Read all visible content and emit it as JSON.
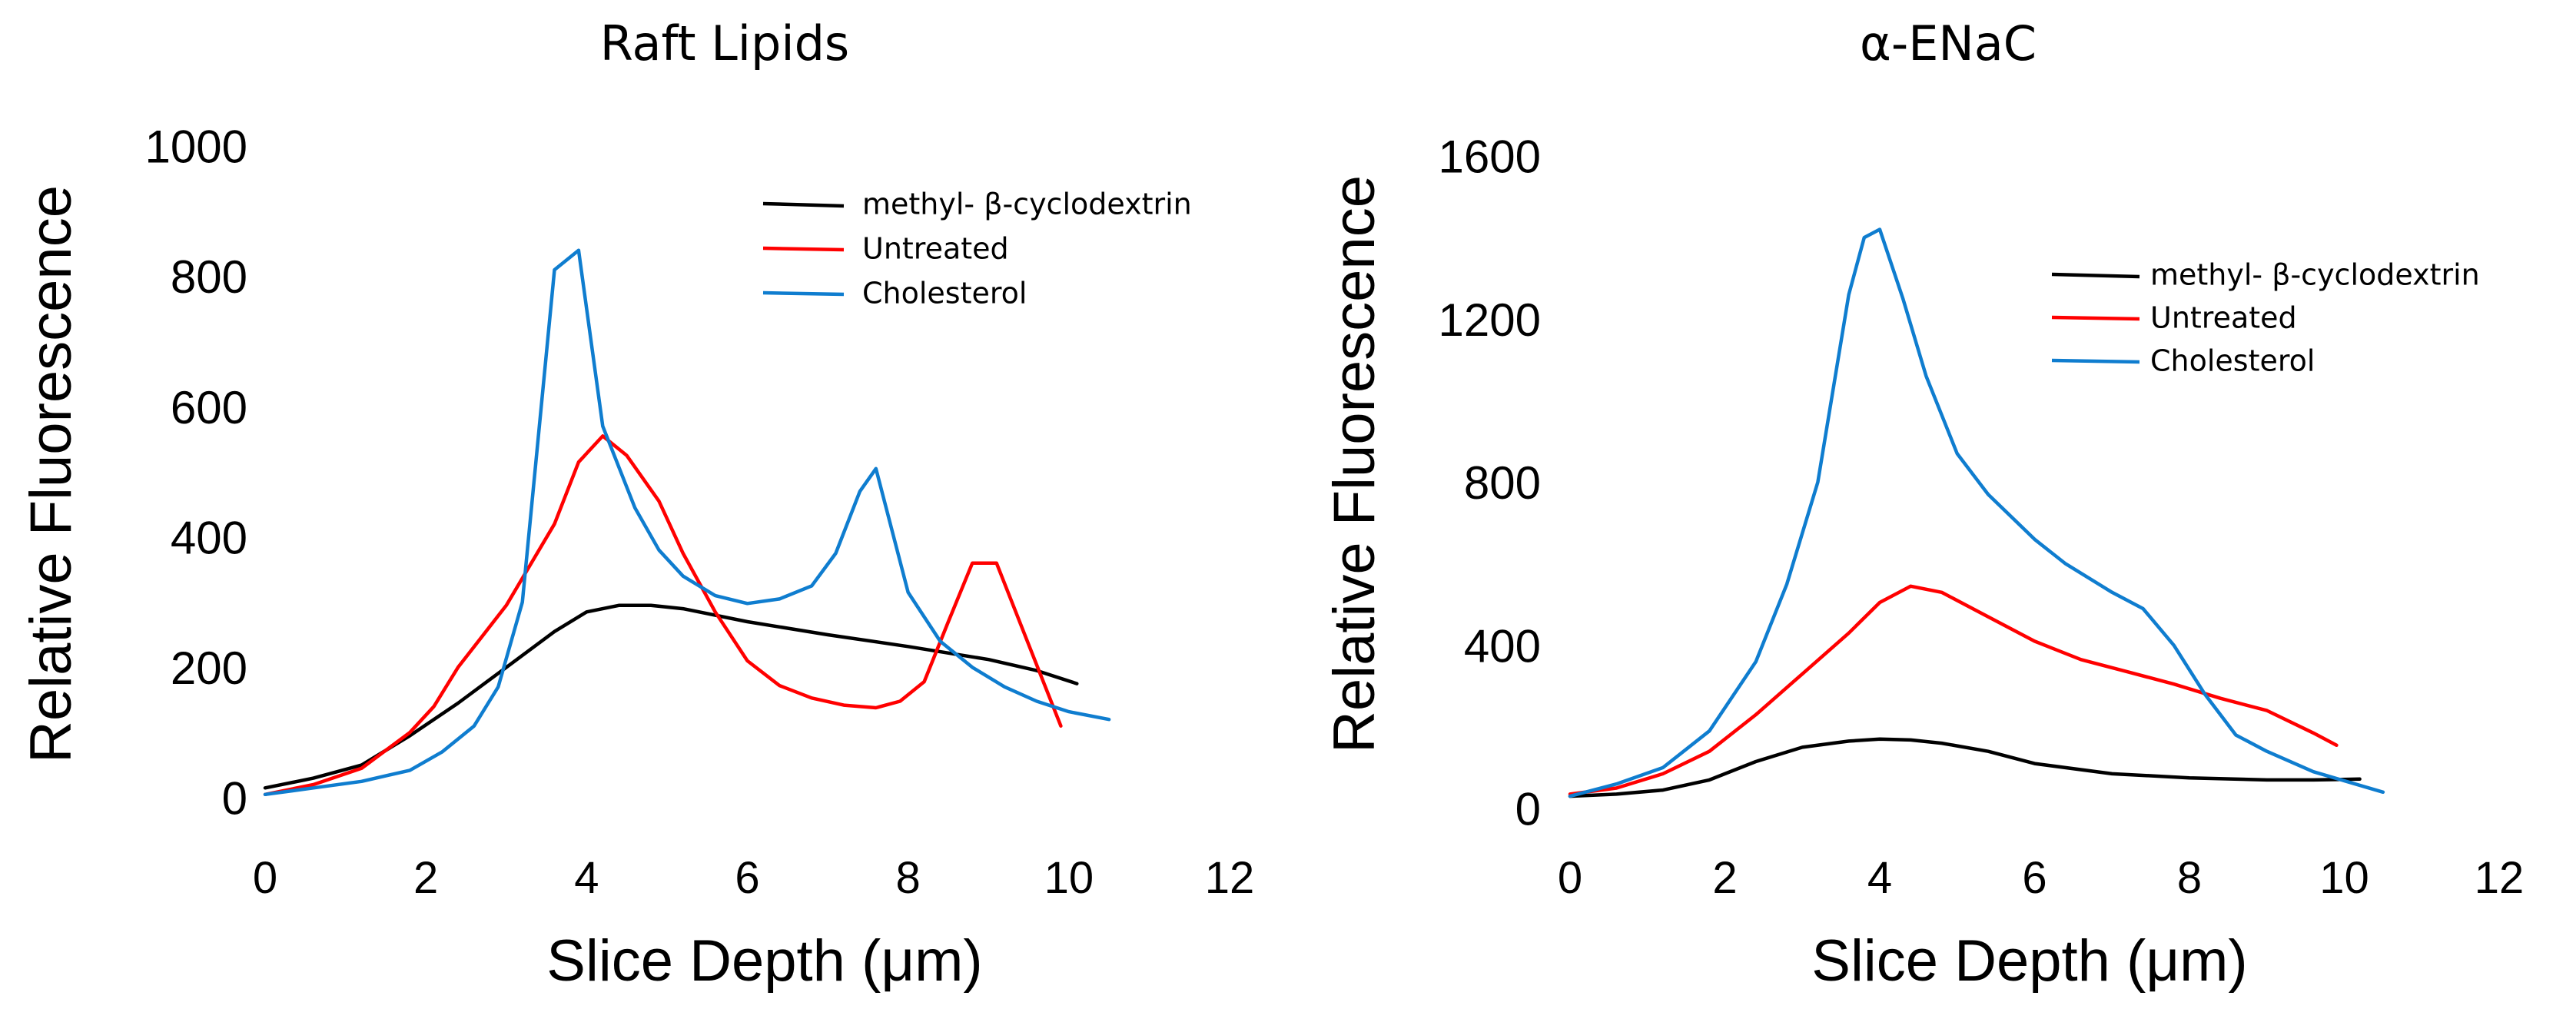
{
  "chart_data": [
    {
      "type": "line",
      "title": "Raft Lipids",
      "xlabel": "Slice Depth (μm)",
      "ylabel": "Relative Fluorescence",
      "xlim": [
        0,
        12
      ],
      "ylim": [
        0,
        1000
      ],
      "xticks": [
        "0",
        "2",
        "4",
        "6",
        "8",
        "10",
        "12"
      ],
      "yticks": [
        "0",
        "200",
        "400",
        "600",
        "800",
        "1000"
      ],
      "grid": false,
      "legend_position": "top-right",
      "series": [
        {
          "name": "methyl- β-cyclodextrin",
          "color": "#000000",
          "x": [
            0,
            0.6,
            1.2,
            1.8,
            2.4,
            3.0,
            3.6,
            4.0,
            4.4,
            4.8,
            5.2,
            6.0,
            7.0,
            8.0,
            9.0,
            9.6,
            10.1
          ],
          "y": [
            15,
            30,
            50,
            95,
            145,
            200,
            255,
            285,
            295,
            295,
            290,
            270,
            250,
            232,
            212,
            195,
            175
          ]
        },
        {
          "name": "Untreated",
          "color": "#ff0000",
          "x": [
            0,
            0.6,
            1.2,
            1.8,
            2.1,
            2.4,
            3.0,
            3.6,
            3.9,
            4.2,
            4.5,
            4.9,
            5.2,
            5.6,
            6.0,
            6.4,
            6.8,
            7.2,
            7.6,
            7.9,
            8.2,
            8.5,
            8.8,
            9.1,
            9.5,
            9.9
          ],
          "y": [
            5,
            20,
            45,
            100,
            140,
            200,
            295,
            420,
            515,
            555,
            525,
            455,
            375,
            285,
            210,
            172,
            153,
            142,
            138,
            148,
            178,
            270,
            360,
            360,
            235,
            110
          ]
        },
        {
          "name": "Cholesterol",
          "color": "#0f7dcf",
          "x": [
            0,
            0.6,
            1.2,
            1.8,
            2.2,
            2.6,
            2.9,
            3.2,
            3.6,
            3.9,
            4.2,
            4.6,
            4.9,
            5.2,
            5.6,
            6.0,
            6.4,
            6.8,
            7.1,
            7.4,
            7.6,
            8.0,
            8.4,
            8.8,
            9.2,
            9.6,
            10.0,
            10.5
          ],
          "y": [
            5,
            15,
            25,
            42,
            70,
            110,
            170,
            300,
            810,
            840,
            570,
            445,
            380,
            340,
            310,
            298,
            305,
            325,
            375,
            470,
            505,
            315,
            240,
            200,
            170,
            148,
            132,
            120
          ]
        }
      ]
    },
    {
      "type": "line",
      "title": "α-ENaC",
      "xlabel": "Slice Depth (μm)",
      "ylabel": "Relative Fluorescence",
      "xlim": [
        0,
        12
      ],
      "ylim": [
        0,
        1600
      ],
      "xticks": [
        "0",
        "2",
        "4",
        "6",
        "8",
        "10",
        "12"
      ],
      "yticks": [
        "0",
        "400",
        "800",
        "1200",
        "1600"
      ],
      "grid": false,
      "legend_position": "top-right",
      "series": [
        {
          "name": "methyl-  β-cyclodextrin",
          "color": "#000000",
          "x": [
            0,
            0.6,
            1.2,
            1.8,
            2.4,
            3.0,
            3.6,
            4.0,
            4.4,
            4.8,
            5.4,
            6.0,
            7.0,
            8.0,
            9.0,
            9.6,
            10.2
          ],
          "y": [
            30,
            35,
            45,
            70,
            115,
            150,
            165,
            170,
            168,
            160,
            140,
            110,
            85,
            75,
            70,
            70,
            72
          ]
        },
        {
          "name": "Untreated",
          "color": "#ff0000",
          "x": [
            0,
            0.6,
            1.2,
            1.8,
            2.4,
            3.0,
            3.6,
            4.0,
            4.4,
            4.8,
            5.4,
            6.0,
            6.6,
            7.2,
            7.8,
            8.4,
            9.0,
            9.6,
            9.9
          ],
          "y": [
            35,
            50,
            85,
            140,
            230,
            330,
            430,
            505,
            545,
            530,
            470,
            410,
            365,
            335,
            305,
            270,
            240,
            185,
            155
          ]
        },
        {
          "name": "Cholesterol",
          "color": "#0f7dcf",
          "x": [
            0,
            0.6,
            1.2,
            1.8,
            2.4,
            2.8,
            3.2,
            3.6,
            3.8,
            4.0,
            4.3,
            4.6,
            5.0,
            5.4,
            6.0,
            6.4,
            7.0,
            7.4,
            7.8,
            8.2,
            8.6,
            9.0,
            9.6,
            10.5
          ],
          "y": [
            30,
            60,
            100,
            190,
            360,
            550,
            800,
            1260,
            1400,
            1420,
            1250,
            1060,
            870,
            770,
            660,
            600,
            530,
            490,
            400,
            280,
            180,
            140,
            90,
            40
          ]
        }
      ]
    }
  ]
}
